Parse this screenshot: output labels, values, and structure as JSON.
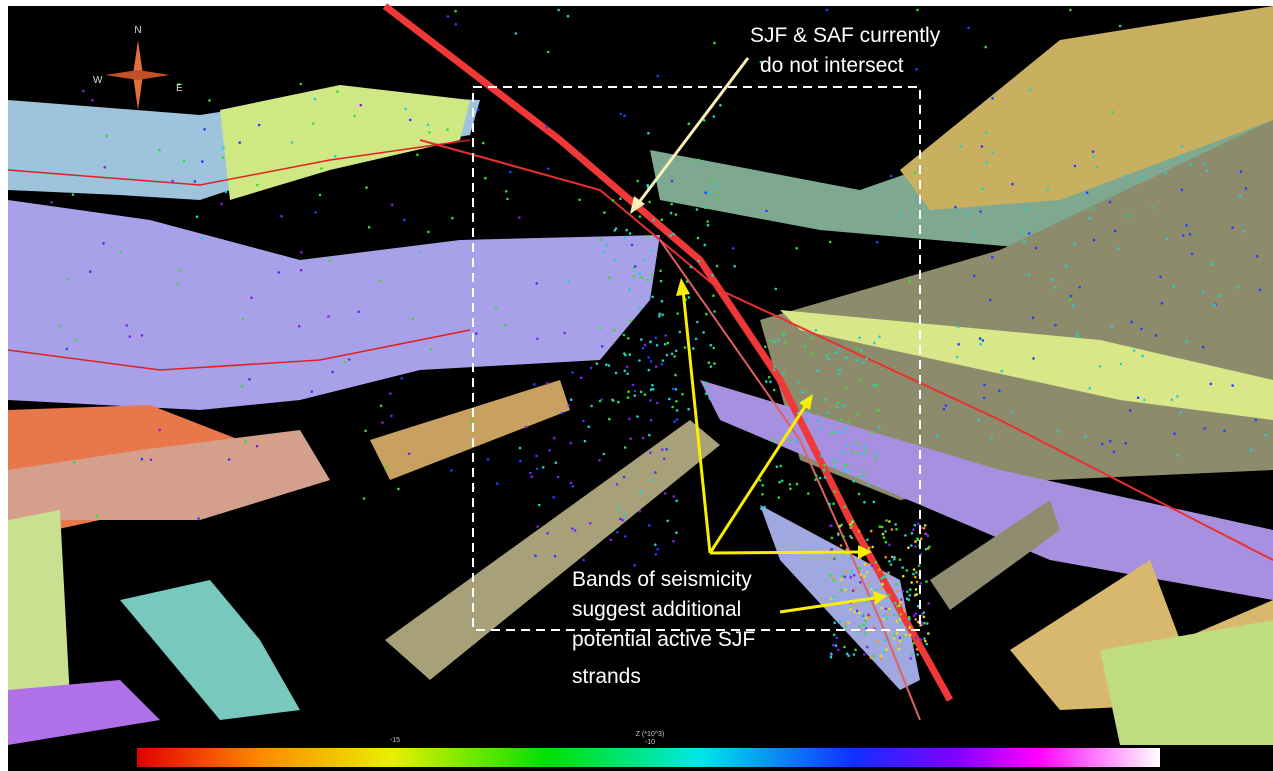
{
  "compass": {
    "north": "N",
    "east": "E",
    "west": "W"
  },
  "annotations": [
    {
      "lines": [
        "SJF & SAF currently",
        "do not intersect"
      ]
    },
    {
      "lines": [
        "Bands of seismicity",
        "suggest additional",
        "potential active SJF",
        "strands"
      ]
    }
  ],
  "colorbar": {
    "label": "Z (*10^3)",
    "ticks": [
      "-15",
      "-10"
    ]
  }
}
